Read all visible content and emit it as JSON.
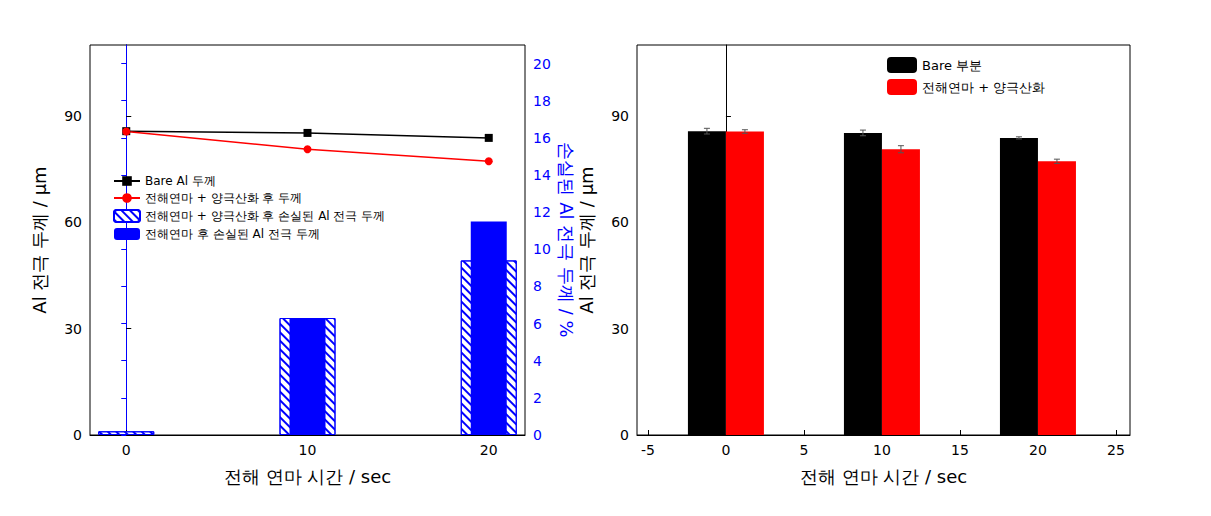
{
  "chart_data": [
    {
      "type": "line",
      "xlabel": "전해 연마 시간 / sec",
      "ylabel": "Al 전극 두께 / μm",
      "y2label": "손실된 Al 전극 두께 / %",
      "x": [
        0,
        10,
        20
      ],
      "xlim": [
        -2,
        22
      ],
      "xticks": [
        0,
        10,
        20
      ],
      "ylim": [
        0,
        110
      ],
      "yticks": [
        0,
        30,
        60,
        90
      ],
      "y2lim": [
        0,
        21
      ],
      "y2ticks": [
        0,
        2,
        4,
        6,
        8,
        10,
        12,
        14,
        16,
        18,
        20
      ],
      "legend": "left",
      "series": [
        {
          "name": "Bare Al 두께",
          "type": "line",
          "color": "#000000",
          "marker": "square",
          "values": [
            85.7,
            85.2,
            83.8
          ]
        },
        {
          "name": "전해연마 + 양극산화 후 두께",
          "type": "line",
          "color": "#ff0000",
          "marker": "circle",
          "values": [
            85.6,
            80.6,
            77.2
          ]
        },
        {
          "name": "전해연마 + 양극산화 후 손실된 Al 전극 두께",
          "type": "bar",
          "axis": "y2",
          "color": "#0000ff",
          "line_style": "hatched",
          "values": [
            0.2,
            6.3,
            9.4
          ]
        },
        {
          "name": "전해연마 후 손실된 Al 전극 두께",
          "type": "bar",
          "axis": "y2",
          "color": "#0000ff",
          "values": [
            0,
            6.3,
            11.5
          ]
        }
      ]
    },
    {
      "type": "bar",
      "xlabel": "전해 연마 시간 / sec",
      "ylabel": "Al 전극 두께 / μm",
      "x": [
        0,
        10,
        20
      ],
      "xlim": [
        -5.7,
        25.9
      ],
      "xticks": [
        -5,
        0,
        5,
        10,
        15,
        20,
        25
      ],
      "ylim": [
        0,
        110
      ],
      "yticks": [
        0,
        30,
        60,
        90
      ],
      "legend": "top",
      "series": [
        {
          "name": "Bare 부분",
          "color": "#000000",
          "values": [
            85.7,
            85.2,
            83.8
          ],
          "errors": [
            0.8,
            0.8,
            0.3
          ]
        },
        {
          "name": "전해연마 + 양극산화",
          "color": "#ff0000",
          "values": [
            85.6,
            80.6,
            77.2
          ],
          "errors": [
            0.5,
            1.0,
            0.6
          ]
        }
      ]
    }
  ]
}
